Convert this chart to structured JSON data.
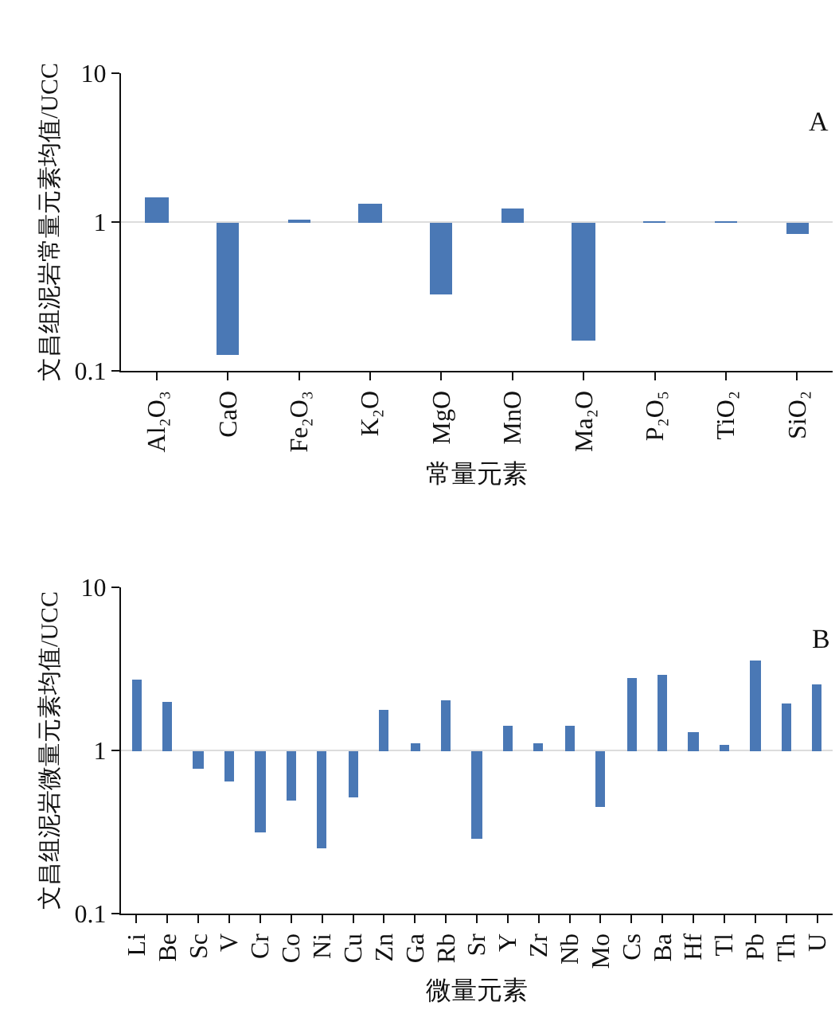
{
  "chart_data": [
    {
      "type": "bar",
      "xlabel": "常量元素",
      "ylabel": "文昌组泥岩常量元素均值/UCC",
      "annotations": [
        "A"
      ],
      "categories": [
        "Al₂O₃",
        "CaO",
        "Fe₂O₃",
        "K₂O",
        "MgO",
        "MnO",
        "Ma₂O",
        "P₂O₅",
        "TiO₂",
        "SiO₂"
      ],
      "base": [
        1,
        1,
        1,
        1,
        1,
        1,
        1,
        1,
        1,
        1
      ],
      "values": [
        0.45,
        -0.873,
        0.02,
        0.32,
        -0.67,
        0.23,
        -0.84,
        -0.01,
        -0.01,
        -0.16
      ],
      "color": "#4a78b5",
      "log": true,
      "ylim": [
        0.1,
        10
      ],
      "yticks": [
        0.1,
        1,
        10
      ],
      "grid": "y"
    },
    {
      "type": "bar",
      "xlabel": "微量元素",
      "ylabel": "文昌组泥岩微量元素均值/UCC",
      "annotations": [
        "B"
      ],
      "categories": [
        "Li",
        "Be",
        "Sc",
        "V",
        "Cr",
        "Co",
        "Ni",
        "Cu",
        "Zn",
        "Ga",
        "Rb",
        "Sr",
        "Y",
        "Zr",
        "Nb",
        "Mo",
        "Cs",
        "Ba",
        "Hf",
        "Tl",
        "Pb",
        "Th",
        "U"
      ],
      "base": [
        1,
        1,
        1,
        1,
        1,
        1,
        1,
        1,
        1,
        1,
        1,
        1,
        1,
        1,
        1,
        1,
        1,
        1,
        1,
        1,
        1,
        1,
        1
      ],
      "values": [
        1.72,
        0.99,
        -0.22,
        -0.35,
        -0.685,
        -0.51,
        -0.75,
        -0.48,
        0.76,
        0.1,
        1.02,
        -0.71,
        0.41,
        0.1,
        0.41,
        -0.55,
        1.81,
        1.88,
        0.3,
        0.09,
        2.53,
        0.94,
        1.55
      ],
      "color": "#4a78b5",
      "log": true,
      "ylim": [
        0.1,
        10
      ],
      "yticks": [
        0.1,
        1,
        10
      ],
      "grid": "y"
    }
  ]
}
